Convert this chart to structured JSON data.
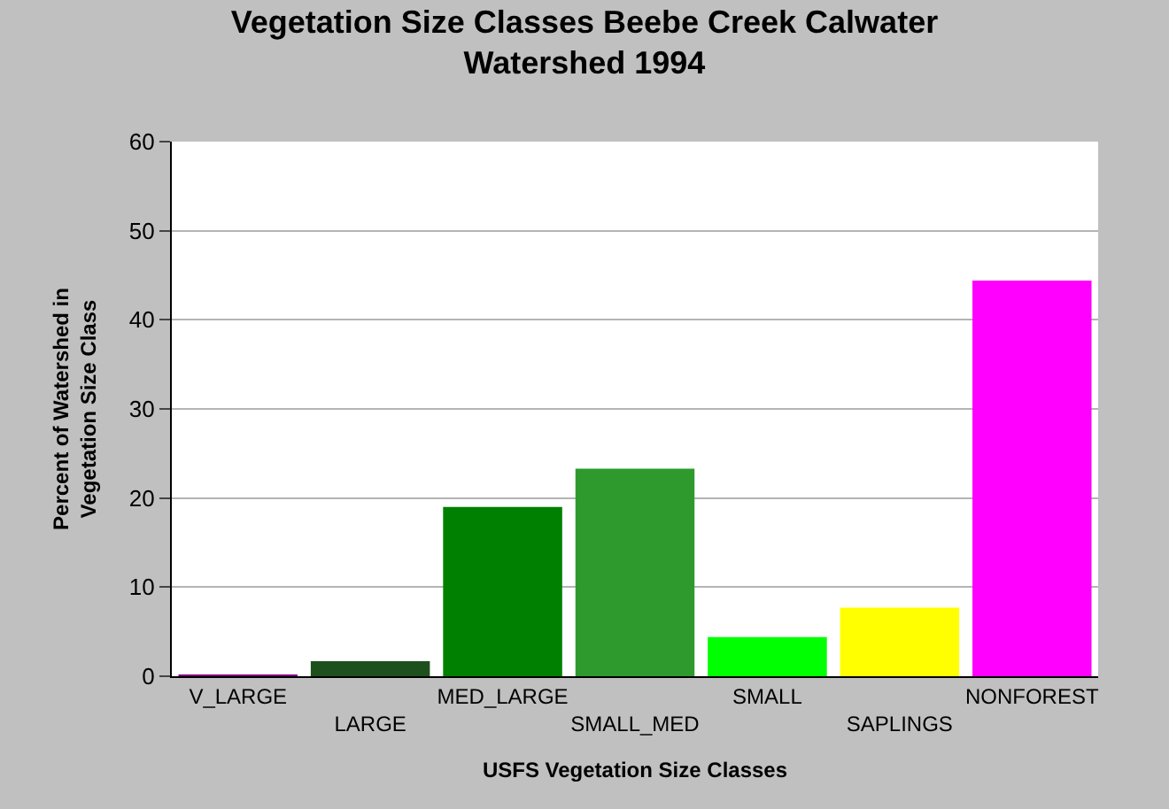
{
  "chart_data": {
    "type": "bar",
    "title": "Vegetation Size Classes Beebe Creek Calwater Watershed 1994",
    "xlabel": "USFS Vegetation Size Classes",
    "ylabel": "Percent of Watershed in Vegetation Size Class",
    "categories": [
      "V_LARGE",
      "LARGE",
      "MED_LARGE",
      "SMALL_MED",
      "SMALL",
      "SAPLINGS",
      "NONFOREST"
    ],
    "values": [
      0.1,
      1.7,
      19.0,
      23.3,
      4.4,
      7.7,
      44.4
    ],
    "colors": [
      "#800080",
      "#1e501e",
      "#008000",
      "#2e9a2e",
      "#00ff00",
      "#ffff00",
      "#ff00ff"
    ],
    "ylim": [
      0,
      60
    ],
    "yticks": [
      0,
      10,
      20,
      30,
      40,
      50,
      60
    ],
    "grid": "y"
  }
}
